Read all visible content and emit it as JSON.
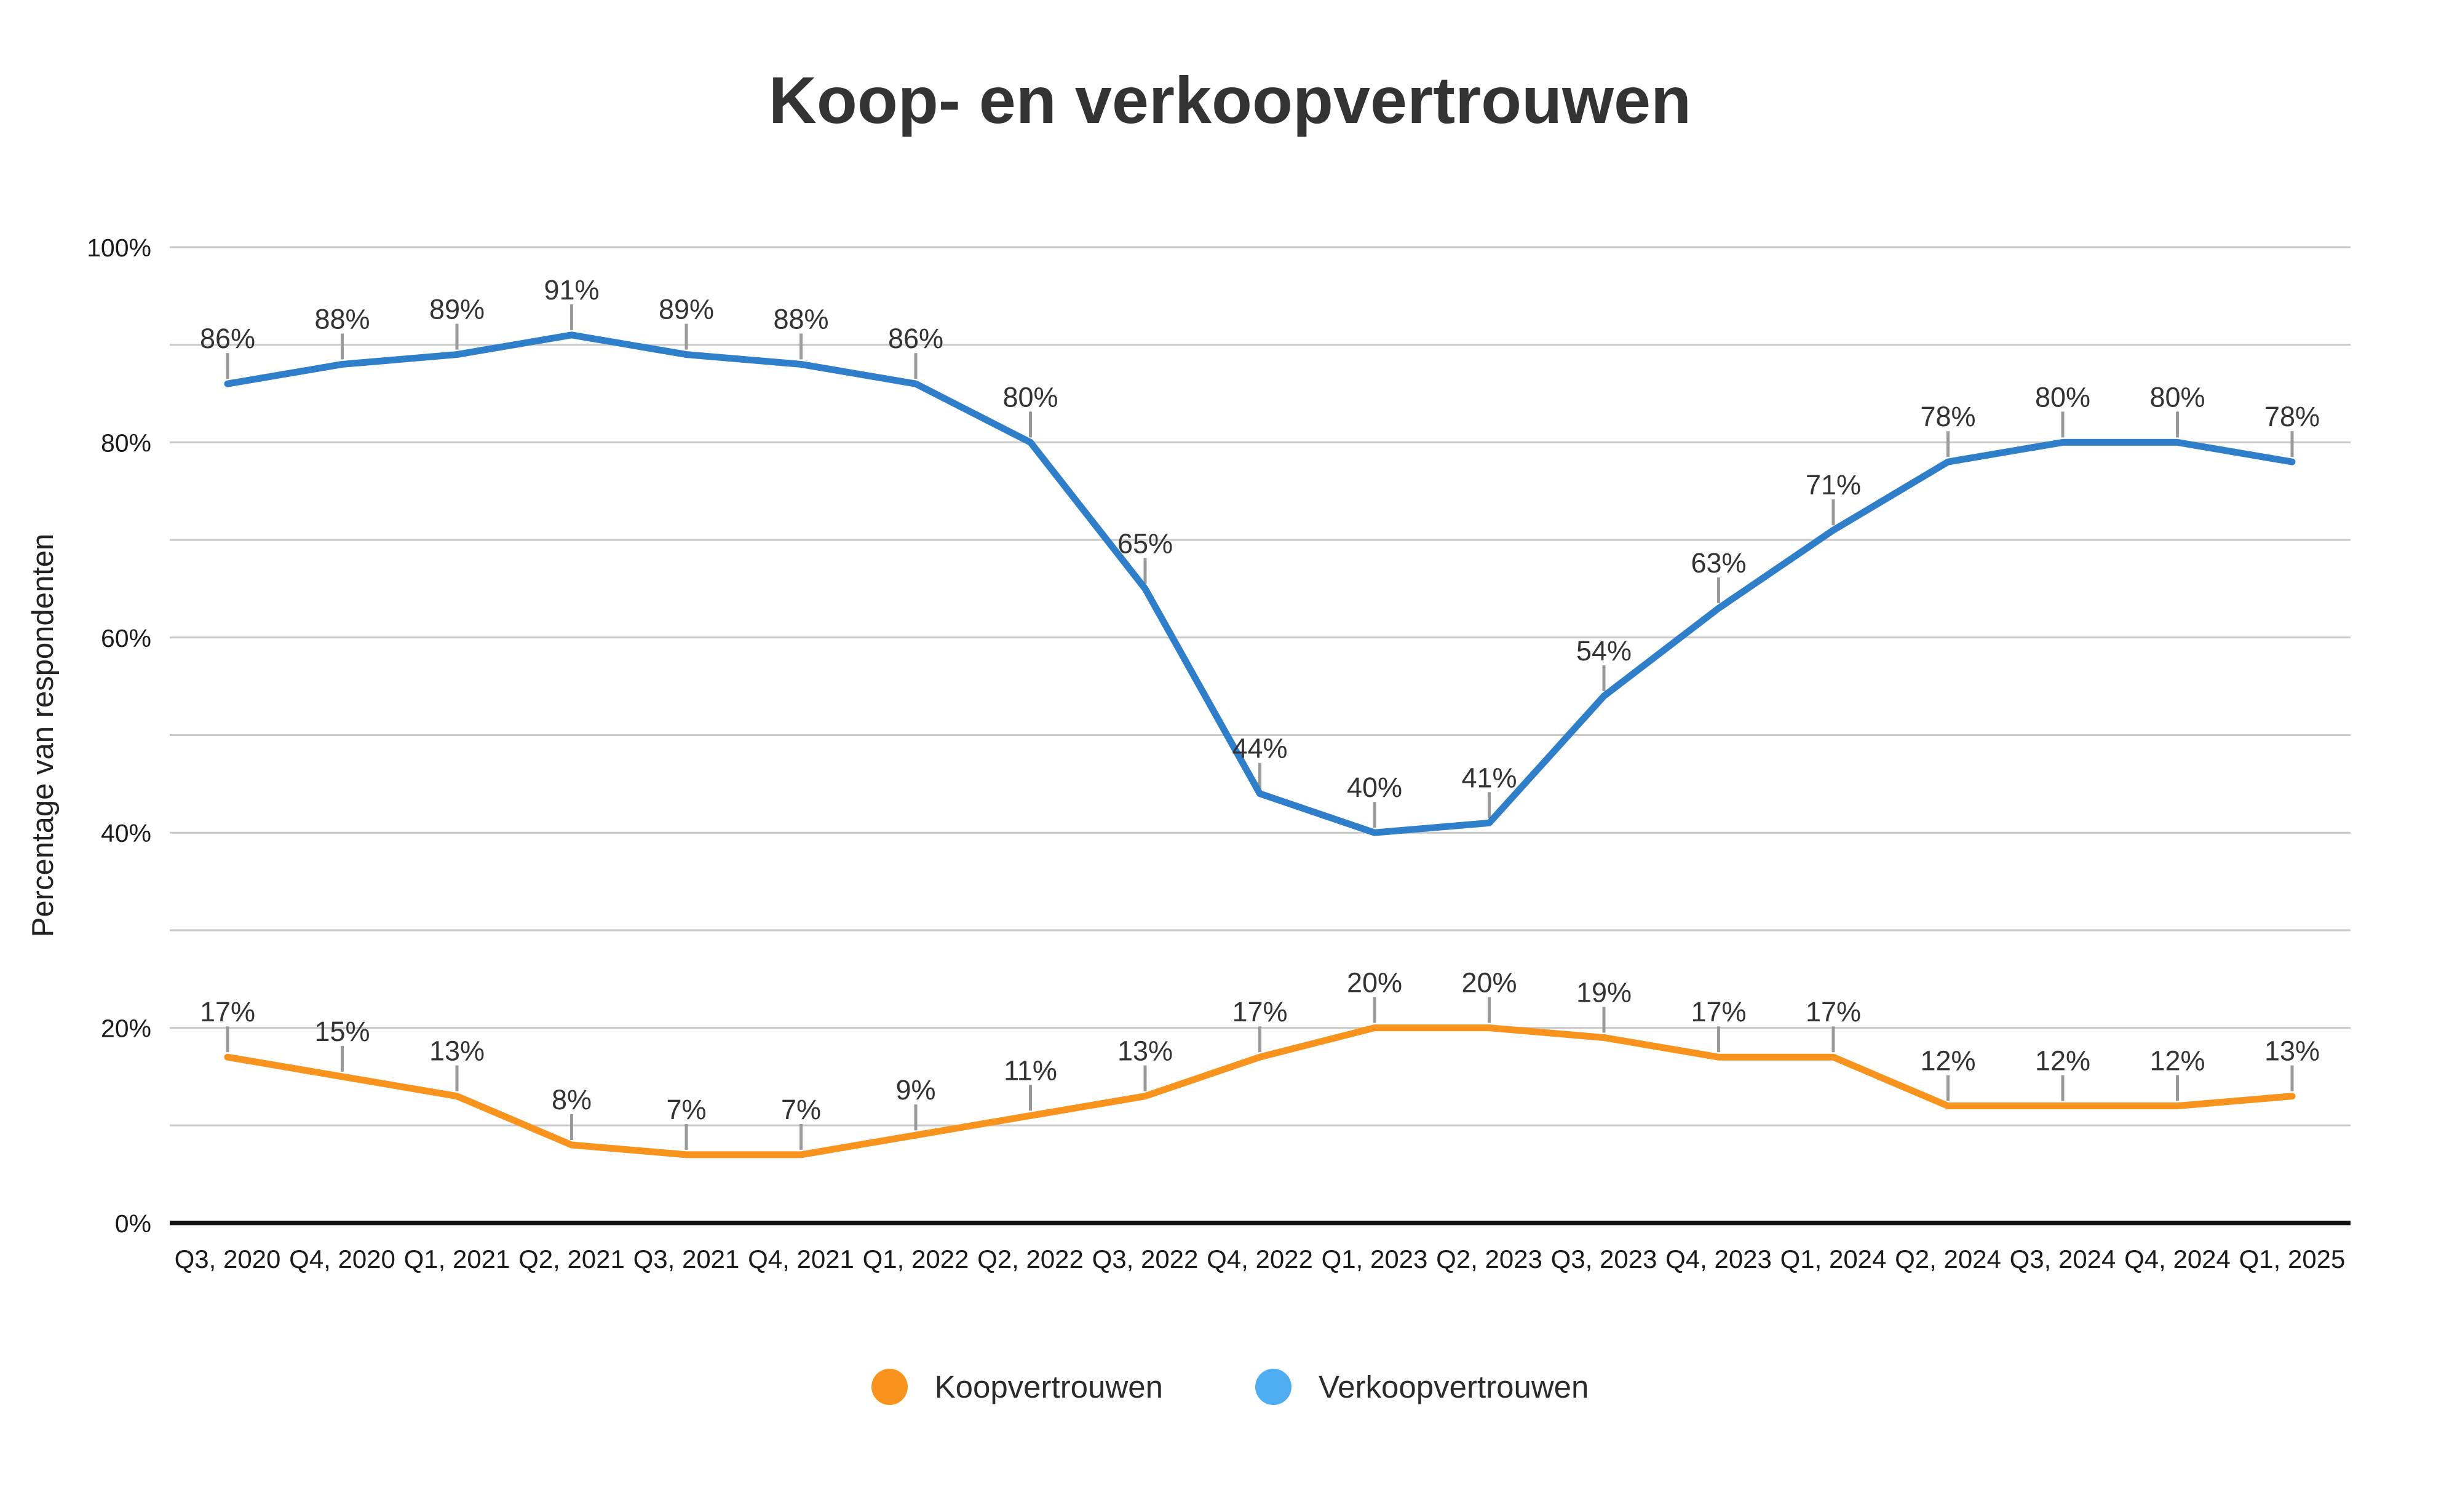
{
  "title": "Koop- en verkoopvertrouwen",
  "y_axis": {
    "title": "Percentage van respondenten"
  },
  "legend": {
    "items": [
      {
        "label": "Koopvertrouwen",
        "color": "#F8941D"
      },
      {
        "label": "Verkoopvertrouwen",
        "color": "#4FADF2"
      }
    ]
  },
  "colors": {
    "title_text": "#333333",
    "label_text": "#333333",
    "tick_text": "#1A1A1A",
    "gridline": "#C9C9C9",
    "zero_axis": "#111111",
    "leader_line": "#9A9A9A",
    "background": "#FFFFFF"
  },
  "chart_data": {
    "type": "line",
    "title": "Koop- en verkoopvertrouwen",
    "xlabel": "",
    "ylabel": "Percentage van respondenten",
    "ylim": [
      0,
      100
    ],
    "grid": true,
    "gridline_step": 10,
    "y_ticks": [
      0,
      20,
      40,
      60,
      80,
      100
    ],
    "tick_suffix": "%",
    "data_label_suffix": "%",
    "legend_position": "bottom",
    "categories": [
      "Q3, 2020",
      "Q4, 2020",
      "Q1, 2021",
      "Q2, 2021",
      "Q3, 2021",
      "Q4, 2021",
      "Q1, 2022",
      "Q2, 2022",
      "Q3, 2022",
      "Q4, 2022",
      "Q1, 2023",
      "Q2, 2023",
      "Q3, 2023",
      "Q4, 2023",
      "Q1, 2024",
      "Q2, 2024",
      "Q3, 2024",
      "Q4, 2024",
      "Q1, 2025"
    ],
    "series": [
      {
        "name": "Koopvertrouwen",
        "color": "#F8941D",
        "values": [
          17,
          15,
          13,
          8,
          7,
          7,
          9,
          11,
          13,
          17,
          20,
          20,
          19,
          17,
          17,
          12,
          12,
          12,
          13
        ]
      },
      {
        "name": "Verkoopvertrouwen",
        "color": "#2E7EC9",
        "values": [
          86,
          88,
          89,
          91,
          89,
          88,
          86,
          80,
          65,
          44,
          40,
          41,
          54,
          63,
          71,
          78,
          80,
          80,
          78
        ]
      }
    ]
  }
}
